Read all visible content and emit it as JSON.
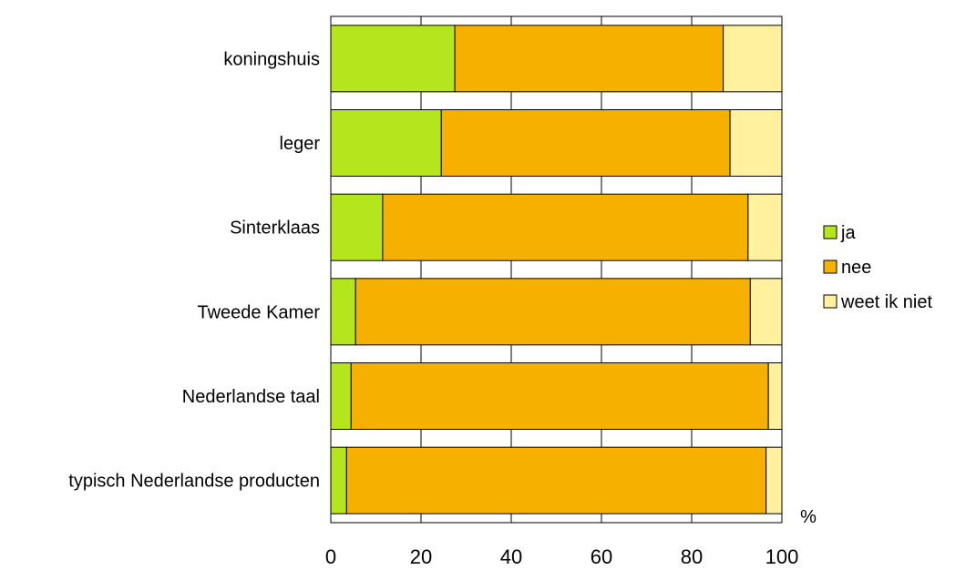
{
  "chart_data": {
    "type": "bar",
    "orientation": "horizontal",
    "stacked": true,
    "categories": [
      "koningshuis",
      "leger",
      "Sinterklaas",
      "Tweede Kamer",
      "Nederlandse taal",
      "typisch Nederlandse producten"
    ],
    "series": [
      {
        "name": "ja",
        "color": "#b5e61d",
        "values": [
          27.5,
          24.5,
          11.5,
          5.5,
          4.5,
          3.5
        ]
      },
      {
        "name": "nee",
        "color": "#f5b000",
        "values": [
          59.5,
          64,
          81,
          87.5,
          92.5,
          93
        ]
      },
      {
        "name": "weet ik niet",
        "color": "#fff19e",
        "values": [
          13,
          11.5,
          7.5,
          7,
          3,
          3.5
        ]
      }
    ],
    "xlim": [
      0,
      100
    ],
    "xticks": [
      "0",
      "20",
      "40",
      "60",
      "80",
      "100"
    ],
    "unit_label": "%",
    "grid": true,
    "legend_position": "right"
  }
}
